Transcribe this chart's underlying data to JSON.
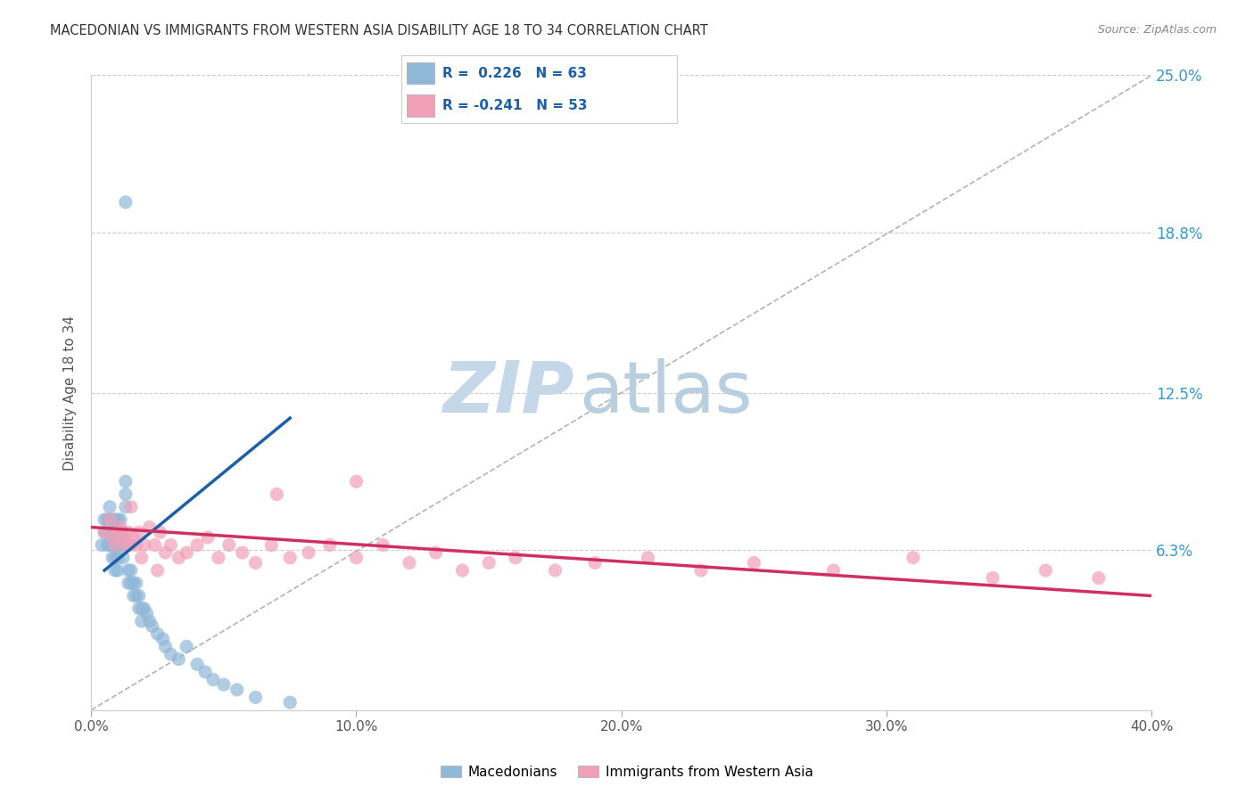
{
  "title": "MACEDONIAN VS IMMIGRANTS FROM WESTERN ASIA DISABILITY AGE 18 TO 34 CORRELATION CHART",
  "source": "Source: ZipAtlas.com",
  "xlabel_ticks": [
    "0.0%",
    "10.0%",
    "20.0%",
    "30.0%",
    "40.0%"
  ],
  "xlabel_values": [
    0.0,
    0.1,
    0.2,
    0.3,
    0.4
  ],
  "ylabel": "Disability Age 18 to 34",
  "ylabel_ticks": [
    0.0,
    0.063,
    0.125,
    0.188,
    0.25
  ],
  "ylabel_tick_labels": [
    "",
    "6.3%",
    "12.5%",
    "18.8%",
    "25.0%"
  ],
  "xlim": [
    0.0,
    0.4
  ],
  "ylim": [
    0.0,
    0.25
  ],
  "r_macedonian": 0.226,
  "n_macedonian": 63,
  "r_western_asia": -0.241,
  "n_western_asia": 53,
  "blue_color": "#90b8d8",
  "blue_line_color": "#1a5fa8",
  "pink_color": "#f0a0b8",
  "pink_line_color": "#d03060",
  "scatter_size": 120,
  "watermark_zip": "ZIP",
  "watermark_atlas": "atlas",
  "watermark_color_zip": "#c5d8ea",
  "watermark_color_atlas": "#b8cfe0",
  "background_color": "#ffffff",
  "grid_color": "#cccccc",
  "blue_scatter_x": [
    0.004,
    0.005,
    0.005,
    0.006,
    0.006,
    0.006,
    0.007,
    0.007,
    0.007,
    0.007,
    0.008,
    0.008,
    0.008,
    0.008,
    0.009,
    0.009,
    0.009,
    0.009,
    0.009,
    0.01,
    0.01,
    0.01,
    0.01,
    0.01,
    0.011,
    0.011,
    0.011,
    0.012,
    0.012,
    0.012,
    0.013,
    0.013,
    0.013,
    0.014,
    0.014,
    0.015,
    0.015,
    0.016,
    0.016,
    0.017,
    0.017,
    0.018,
    0.018,
    0.019,
    0.019,
    0.02,
    0.021,
    0.022,
    0.023,
    0.025,
    0.027,
    0.028,
    0.03,
    0.033,
    0.036,
    0.04,
    0.043,
    0.046,
    0.05,
    0.055,
    0.062,
    0.075,
    0.013
  ],
  "blue_scatter_y": [
    0.065,
    0.07,
    0.075,
    0.065,
    0.07,
    0.075,
    0.065,
    0.07,
    0.075,
    0.08,
    0.06,
    0.065,
    0.07,
    0.075,
    0.055,
    0.06,
    0.065,
    0.07,
    0.075,
    0.055,
    0.06,
    0.065,
    0.07,
    0.075,
    0.065,
    0.07,
    0.075,
    0.06,
    0.065,
    0.07,
    0.08,
    0.085,
    0.09,
    0.05,
    0.055,
    0.05,
    0.055,
    0.045,
    0.05,
    0.045,
    0.05,
    0.04,
    0.045,
    0.035,
    0.04,
    0.04,
    0.038,
    0.035,
    0.033,
    0.03,
    0.028,
    0.025,
    0.022,
    0.02,
    0.025,
    0.018,
    0.015,
    0.012,
    0.01,
    0.008,
    0.005,
    0.003,
    0.2
  ],
  "pink_scatter_x": [
    0.005,
    0.007,
    0.008,
    0.009,
    0.01,
    0.011,
    0.012,
    0.013,
    0.014,
    0.015,
    0.016,
    0.017,
    0.018,
    0.019,
    0.02,
    0.022,
    0.024,
    0.026,
    0.028,
    0.03,
    0.033,
    0.036,
    0.04,
    0.044,
    0.048,
    0.052,
    0.057,
    0.062,
    0.068,
    0.075,
    0.082,
    0.09,
    0.1,
    0.11,
    0.12,
    0.13,
    0.14,
    0.15,
    0.16,
    0.175,
    0.19,
    0.21,
    0.23,
    0.25,
    0.28,
    0.31,
    0.34,
    0.36,
    0.38,
    0.015,
    0.025,
    0.07,
    0.1
  ],
  "pink_scatter_y": [
    0.07,
    0.075,
    0.068,
    0.065,
    0.07,
    0.072,
    0.068,
    0.065,
    0.07,
    0.065,
    0.068,
    0.065,
    0.07,
    0.06,
    0.065,
    0.072,
    0.065,
    0.07,
    0.062,
    0.065,
    0.06,
    0.062,
    0.065,
    0.068,
    0.06,
    0.065,
    0.062,
    0.058,
    0.065,
    0.06,
    0.062,
    0.065,
    0.06,
    0.065,
    0.058,
    0.062,
    0.055,
    0.058,
    0.06,
    0.055,
    0.058,
    0.06,
    0.055,
    0.058,
    0.055,
    0.06,
    0.052,
    0.055,
    0.052,
    0.08,
    0.055,
    0.085,
    0.09
  ],
  "blue_line_x": [
    0.005,
    0.075
  ],
  "blue_line_y": [
    0.055,
    0.115
  ],
  "pink_line_x": [
    0.0,
    0.4
  ],
  "pink_line_y": [
    0.072,
    0.045
  ],
  "diag_line_x": [
    0.0,
    0.4
  ],
  "diag_line_y": [
    0.0,
    0.25
  ],
  "legend_label_blue": "Macedonians",
  "legend_label_pink": "Immigrants from Western Asia"
}
